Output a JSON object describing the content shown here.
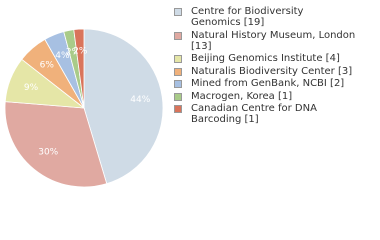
{
  "chart_data": {
    "type": "pie",
    "categories": [
      "Centre for Biodiversity\nGenomics [19]",
      "Natural History Museum, London [13]",
      "Beijing Genomics Institute [4]",
      "Naturalis Biodiversity Center [3]",
      "Mined from GenBank, NCBI [2]",
      "Macrogen, Korea [1]",
      "Canadian Centre for DNA\nBarcoding [1]"
    ],
    "values": [
      44,
      30,
      9,
      6,
      4,
      2,
      2
    ],
    "value_labels": [
      "44%",
      "30%",
      "9%",
      "6%",
      "4%",
      "2%",
      "2%"
    ],
    "colors": [
      "#cfdbe6",
      "#e0a9a1",
      "#e5e6a7",
      "#f0b17b",
      "#a7c0e2",
      "#a9cb89",
      "#d9745b"
    ]
  }
}
